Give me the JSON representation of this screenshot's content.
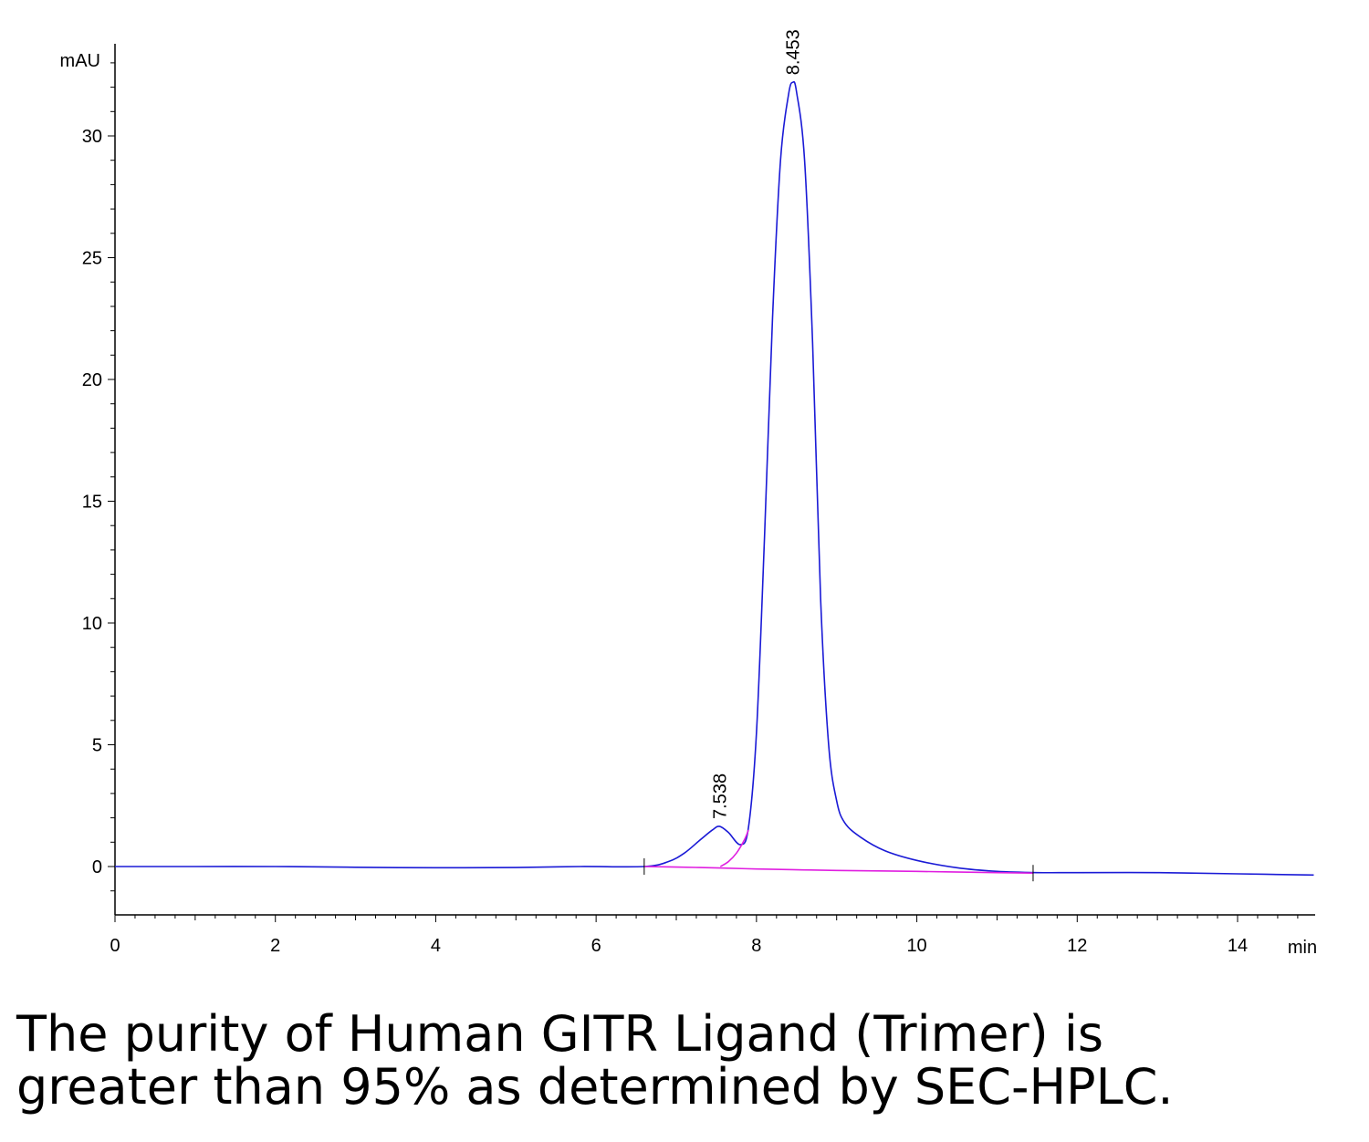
{
  "chart_data": {
    "type": "line",
    "xlabel": "min",
    "ylabel": "mAU",
    "xlim": [
      0,
      15
    ],
    "ylim": [
      -2,
      33
    ],
    "xticks": [
      0,
      2,
      4,
      6,
      8,
      10,
      12,
      14
    ],
    "yticks": [
      0,
      5,
      10,
      15,
      20,
      25,
      30
    ],
    "grid": false,
    "colors": {
      "signal": "#1a1ad6",
      "baseline": "#e01ee0",
      "axis": "#000000"
    },
    "series": [
      {
        "role": "signal",
        "x": [
          0,
          1,
          2,
          3,
          4,
          5,
          5.8,
          6.6,
          6.9,
          7.1,
          7.3,
          7.45,
          7.538,
          7.65,
          7.8,
          7.9,
          8.0,
          8.1,
          8.2,
          8.3,
          8.4,
          8.453,
          8.5,
          8.6,
          8.7,
          8.8,
          8.9,
          9.0,
          9.1,
          9.3,
          9.6,
          10.0,
          10.5,
          11.0,
          11.5,
          12.0,
          13.0,
          14.0,
          14.95
        ],
        "y": [
          0,
          0,
          0,
          -0.03,
          -0.05,
          -0.04,
          0,
          0,
          0.2,
          0.55,
          1.1,
          1.5,
          1.65,
          1.4,
          0.9,
          1.6,
          5.5,
          13.5,
          22.5,
          29,
          31.7,
          32.2,
          31.8,
          29,
          21.5,
          11,
          5,
          2.7,
          1.8,
          1.2,
          0.65,
          0.25,
          -0.05,
          -0.2,
          -0.25,
          -0.25,
          -0.25,
          -0.3,
          -0.35
        ]
      },
      {
        "role": "baseline",
        "x": [
          6.6,
          7.0,
          7.538,
          8.0,
          8.453,
          9.0,
          10.0,
          11.0,
          11.45
        ],
        "y": [
          0,
          -0.02,
          -0.06,
          -0.1,
          -0.13,
          -0.16,
          -0.2,
          -0.25,
          -0.27
        ]
      },
      {
        "role": "peak-fit",
        "x": [
          7.55,
          7.65,
          7.75,
          7.85,
          7.9
        ],
        "y": [
          0.0,
          0.2,
          0.55,
          1.1,
          1.5
        ]
      }
    ],
    "peaks": [
      {
        "rt": 7.538,
        "label": "7.538",
        "height": 1.65
      },
      {
        "rt": 8.453,
        "label": "8.453",
        "height": 32.2
      }
    ],
    "integration_markers": [
      6.6,
      11.45
    ]
  },
  "caption": {
    "line1": "The purity of Human GITR Ligand (Trimer) is",
    "line2": "greater than 95% as determined by SEC-HPLC."
  }
}
